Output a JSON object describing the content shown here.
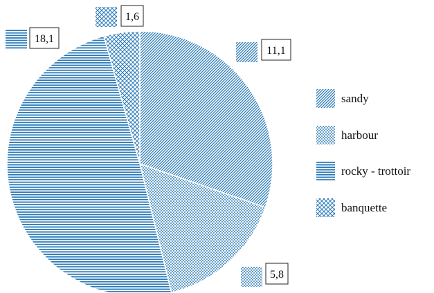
{
  "chart_data": {
    "type": "pie",
    "title": "",
    "slices": [
      {
        "label": "sandy",
        "value": 11.1,
        "value_label": "11,1",
        "pattern": "diagonal-lines"
      },
      {
        "label": "harbour",
        "value": 5.8,
        "value_label": "5,8",
        "pattern": "dots"
      },
      {
        "label": "rocky - trottoir",
        "value": 18.1,
        "value_label": "18,1",
        "pattern": "horizontal-lines"
      },
      {
        "label": "banquette",
        "value": 1.6,
        "value_label": "1,6",
        "pattern": "crosshatch"
      }
    ],
    "start": "top",
    "direction": "clockwise",
    "legend_position": "right",
    "color": "#2a7ab8"
  }
}
